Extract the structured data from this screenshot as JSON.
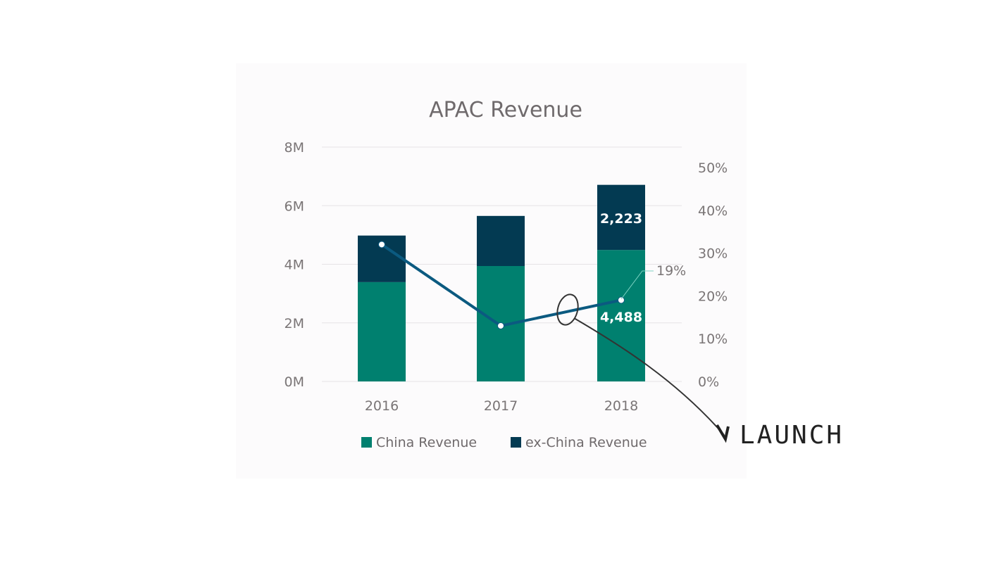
{
  "chart_data": {
    "type": "bar",
    "title": "APAC Revenue",
    "categories": [
      "2016",
      "2017",
      "2018"
    ],
    "series": [
      {
        "name": "China Revenue",
        "type": "bar",
        "stack": "revenue",
        "color": "#00806f",
        "values": [
          3390,
          3940,
          4488
        ],
        "unit": "thousands"
      },
      {
        "name": "ex-China Revenue",
        "type": "bar",
        "stack": "revenue",
        "color": "#033a52",
        "values": [
          1590,
          1710,
          2223
        ],
        "unit": "thousands"
      },
      {
        "name": "Growth %",
        "type": "line",
        "axis": "right",
        "color": "#0b5a80",
        "values": [
          32,
          13,
          19
        ]
      }
    ],
    "left_axis": {
      "ticks": [
        "0M",
        "2M",
        "4M",
        "6M",
        "8M"
      ],
      "ylim": [
        0,
        8000
      ]
    },
    "right_axis": {
      "ticks": [
        "0%",
        "10%",
        "20%",
        "30%",
        "40%",
        "50%"
      ],
      "ylim": [
        0,
        50
      ]
    },
    "data_labels": {
      "china_2018": "4,488",
      "exchina_2018": "2,223",
      "growth_2018": "19%"
    },
    "legend": [
      "China Revenue",
      "ex-China Revenue"
    ],
    "legend_position": "bottom",
    "grid": true,
    "annotation": "LAUNCH"
  }
}
